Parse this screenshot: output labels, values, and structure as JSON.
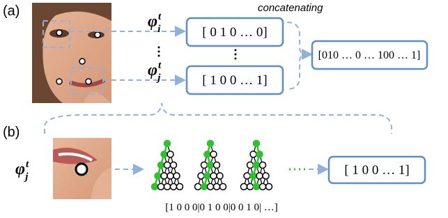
{
  "panel_a": {
    "label": "(a)",
    "annotation": "concatenating",
    "feature_i": {
      "symbol": "φ",
      "sup": "t",
      "sub": "i"
    },
    "feature_j": {
      "symbol": "φ",
      "sup": "t",
      "sub": "j"
    },
    "vector_i": "[ 0 1 0  …  0]",
    "vector_j": "[ 1 0 0  …  1]",
    "concatenated": "[010 … 0 … 100 … 1]"
  },
  "panel_b": {
    "label": "(b)",
    "feature_j": {
      "symbol": "φ",
      "sup": "t",
      "sub": "j"
    },
    "leaf_code": "[1 0 0 0|0 1 0 0|0 0 1 0| …]",
    "output": "[ 1 0 0  …  1]"
  }
}
